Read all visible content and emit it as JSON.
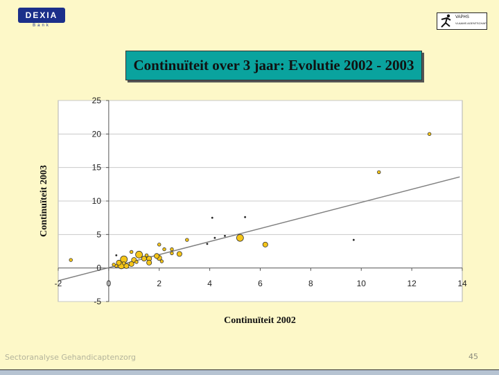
{
  "logos": {
    "left_text": "DEXIA",
    "left_sub": "Bank",
    "right_text": "VAPHS",
    "right_sub": "VLAAMS AGENTSCHAP"
  },
  "slide_title": "Continuïteit over 3 jaar: Evolutie 2002 - 2003",
  "footer": {
    "left": "Sectoranalyse Gehandicaptenzorg",
    "page": "45"
  },
  "colors": {
    "background": "#fdf8c8",
    "title_box": "#0aa39e",
    "bubble": "#f5c518",
    "trendline": "#808080"
  },
  "chart_data": {
    "type": "scatter",
    "title": "",
    "xlabel": "Continuïteit 2002",
    "ylabel": "Continuïteit 2003",
    "xlim": [
      -2,
      14
    ],
    "ylim": [
      -5,
      25
    ],
    "xticks": [
      -2,
      0,
      2,
      4,
      6,
      8,
      10,
      12,
      14
    ],
    "yticks": [
      -5,
      0,
      5,
      10,
      15,
      20,
      25
    ],
    "grid": "horizontal",
    "legend": "none",
    "trendline": {
      "x": [
        -2,
        13.9
      ],
      "y": [
        -1.9,
        13.6
      ]
    },
    "points": [
      {
        "x": -1.5,
        "y": 1.2,
        "size": "small"
      },
      {
        "x": 12.7,
        "y": 20.0,
        "size": "small"
      },
      {
        "x": 10.7,
        "y": 14.3,
        "size": "small"
      },
      {
        "x": 9.7,
        "y": 4.2,
        "size": "tiny"
      },
      {
        "x": 4.1,
        "y": 7.5,
        "size": "tiny"
      },
      {
        "x": 5.4,
        "y": 7.6,
        "size": "tiny"
      },
      {
        "x": 4.6,
        "y": 4.8,
        "size": "tiny"
      },
      {
        "x": 4.2,
        "y": 4.5,
        "size": "tiny"
      },
      {
        "x": 3.9,
        "y": 3.6,
        "size": "tiny"
      },
      {
        "x": 3.1,
        "y": 4.2,
        "size": "small"
      },
      {
        "x": 5.2,
        "y": 4.5,
        "size": "large"
      },
      {
        "x": 6.2,
        "y": 3.5,
        "size": "medium"
      },
      {
        "x": 2.8,
        "y": 2.1,
        "size": "medium"
      },
      {
        "x": 2.0,
        "y": 3.5,
        "size": "small"
      },
      {
        "x": 2.2,
        "y": 2.8,
        "size": "small"
      },
      {
        "x": 2.5,
        "y": 2.8,
        "size": "small"
      },
      {
        "x": 2.5,
        "y": 2.2,
        "size": "small"
      },
      {
        "x": 2.0,
        "y": 1.5,
        "size": "medium"
      },
      {
        "x": 1.9,
        "y": 1.8,
        "size": "medium"
      },
      {
        "x": 1.6,
        "y": 1.4,
        "size": "medium"
      },
      {
        "x": 1.6,
        "y": 0.8,
        "size": "medium"
      },
      {
        "x": 2.1,
        "y": 1.0,
        "size": "small"
      },
      {
        "x": 1.2,
        "y": 2.0,
        "size": "large"
      },
      {
        "x": 1.4,
        "y": 1.4,
        "size": "medium"
      },
      {
        "x": 1.0,
        "y": 1.2,
        "size": "medium"
      },
      {
        "x": 0.9,
        "y": 2.4,
        "size": "small"
      },
      {
        "x": 0.9,
        "y": 0.6,
        "size": "medium"
      },
      {
        "x": 0.6,
        "y": 1.3,
        "size": "large"
      },
      {
        "x": 0.5,
        "y": 0.4,
        "size": "large"
      },
      {
        "x": 0.4,
        "y": 0.8,
        "size": "medium"
      },
      {
        "x": 0.7,
        "y": 0.3,
        "size": "medium"
      },
      {
        "x": 0.3,
        "y": 0.3,
        "size": "small"
      },
      {
        "x": 0.2,
        "y": 0.5,
        "size": "small"
      },
      {
        "x": 0.6,
        "y": 0.7,
        "size": "small"
      },
      {
        "x": 1.1,
        "y": 0.9,
        "size": "small"
      },
      {
        "x": 0.3,
        "y": 1.9,
        "size": "tiny"
      },
      {
        "x": 1.5,
        "y": 1.9,
        "size": "small"
      }
    ]
  }
}
